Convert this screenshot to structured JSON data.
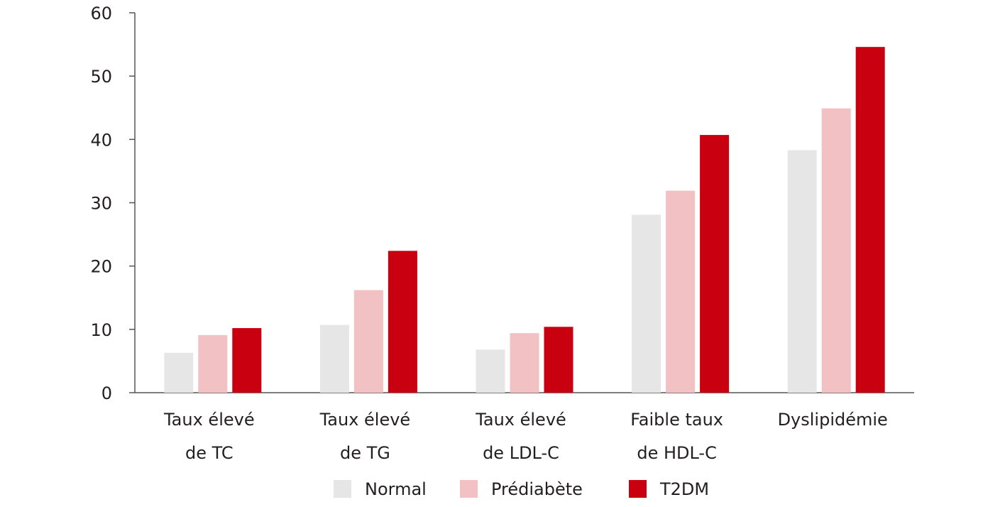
{
  "chart_data": {
    "type": "bar",
    "categories": [
      [
        "Taux élevé",
        "de TC"
      ],
      [
        "Taux élevé",
        "de TG"
      ],
      [
        "Taux élevé",
        "de LDL-C"
      ],
      [
        "Faible taux",
        "de HDL-C"
      ],
      [
        "Dyslipidémie"
      ]
    ],
    "series": [
      {
        "name": "Normal",
        "color": "#e6e6e6",
        "values": [
          6.3,
          10.7,
          6.8,
          28.1,
          38.3
        ]
      },
      {
        "name": "Prédiabète",
        "color": "#f2c1c4",
        "values": [
          9.1,
          16.2,
          9.4,
          31.9,
          44.9
        ]
      },
      {
        "name": "T2DM",
        "color": "#c8000f",
        "values": [
          10.2,
          22.4,
          10.4,
          40.7,
          54.6
        ]
      }
    ],
    "ylim": [
      0,
      60
    ],
    "yticks": [
      0,
      10,
      20,
      30,
      40,
      50,
      60
    ],
    "grid": false,
    "legend": "bottom"
  }
}
